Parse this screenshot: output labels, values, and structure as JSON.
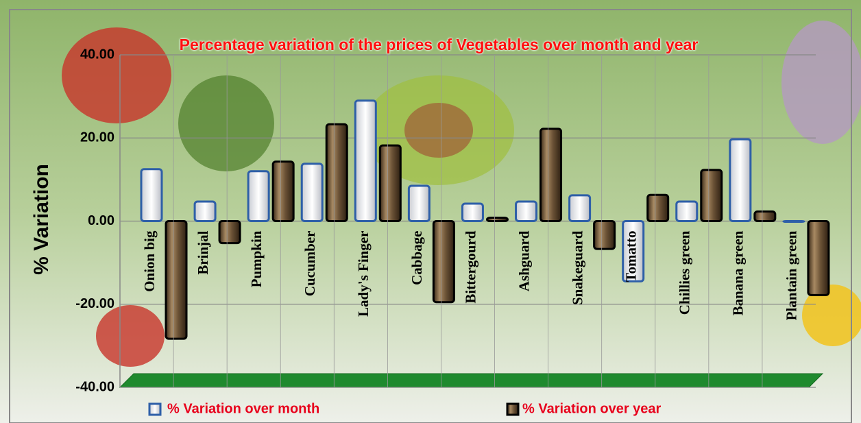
{
  "chart_data": {
    "type": "bar",
    "title": "Percentage variation of the prices of Vegetables over month and year",
    "y_label": "% Variation",
    "categories": [
      "Onion big",
      "Brinjal",
      "Pumpkin",
      "Cucumber",
      "Lady's Finger",
      "Cabbage",
      "Bittergourd",
      "Ashguard",
      "Snakeguard",
      "Tomatto",
      "Chillies green",
      "Banana green",
      "Plantain green"
    ],
    "series": [
      {
        "name": "%  Variation over month",
        "color": "#2e5fa8",
        "values": [
          12.5,
          4.7,
          12,
          13.8,
          29,
          8.5,
          4.2,
          4.7,
          6.2,
          -14.5,
          4.7,
          19.7,
          0
        ]
      },
      {
        "name": "%  Variation over year",
        "color": "#000000",
        "values": [
          -28.3,
          -5.3,
          14.3,
          23.3,
          18.2,
          -19.5,
          0.8,
          22.2,
          -6.7,
          6.3,
          12.3,
          2.3,
          -17.8
        ]
      }
    ],
    "ylim": [
      -40,
      40
    ],
    "yticks": [
      {
        "value": -40,
        "label": "-40.00"
      },
      {
        "value": -20,
        "label": "-20.00"
      },
      {
        "value": 0,
        "label": "0.00"
      },
      {
        "value": 20,
        "label": "20.00"
      },
      {
        "value": 40,
        "label": "40.00"
      }
    ],
    "grid": true
  }
}
